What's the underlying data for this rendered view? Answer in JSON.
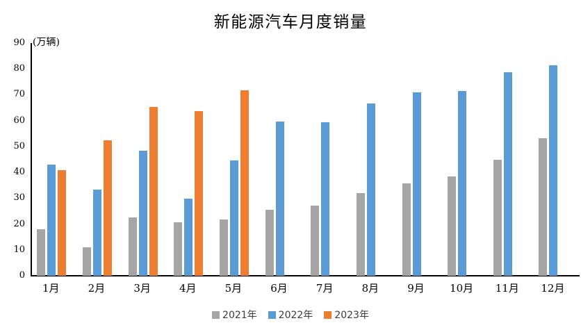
{
  "chart_data": {
    "type": "bar",
    "title": "新能源汽车月度销量",
    "unit_label": "(万辆)",
    "categories": [
      "1月",
      "2月",
      "3月",
      "4月",
      "5月",
      "6月",
      "7月",
      "8月",
      "9月",
      "10月",
      "11月",
      "12月"
    ],
    "series": [
      {
        "name": "2021年",
        "color": "#A5A5A5",
        "values": [
          17.9,
          11.0,
          22.6,
          20.6,
          21.7,
          25.6,
          27.1,
          32.1,
          35.7,
          38.3,
          45.0,
          53.1
        ]
      },
      {
        "name": "2022年",
        "color": "#5B9BD5",
        "values": [
          43.1,
          33.4,
          48.4,
          29.9,
          44.7,
          59.6,
          59.3,
          66.6,
          70.8,
          71.4,
          78.6,
          81.4
        ]
      },
      {
        "name": "2023年",
        "color": "#ED7D31",
        "values": [
          40.8,
          52.5,
          65.3,
          63.6,
          71.7,
          null,
          null,
          null,
          null,
          null,
          null,
          null
        ]
      }
    ],
    "ylabel": "",
    "xlabel": "",
    "ylim": [
      0,
      90
    ],
    "yticks": [
      0,
      10,
      20,
      30,
      40,
      50,
      60,
      70,
      80,
      90
    ],
    "grid": false,
    "legend_position": "bottom",
    "axis_color": "#000000",
    "background_color": "#ffffff"
  }
}
